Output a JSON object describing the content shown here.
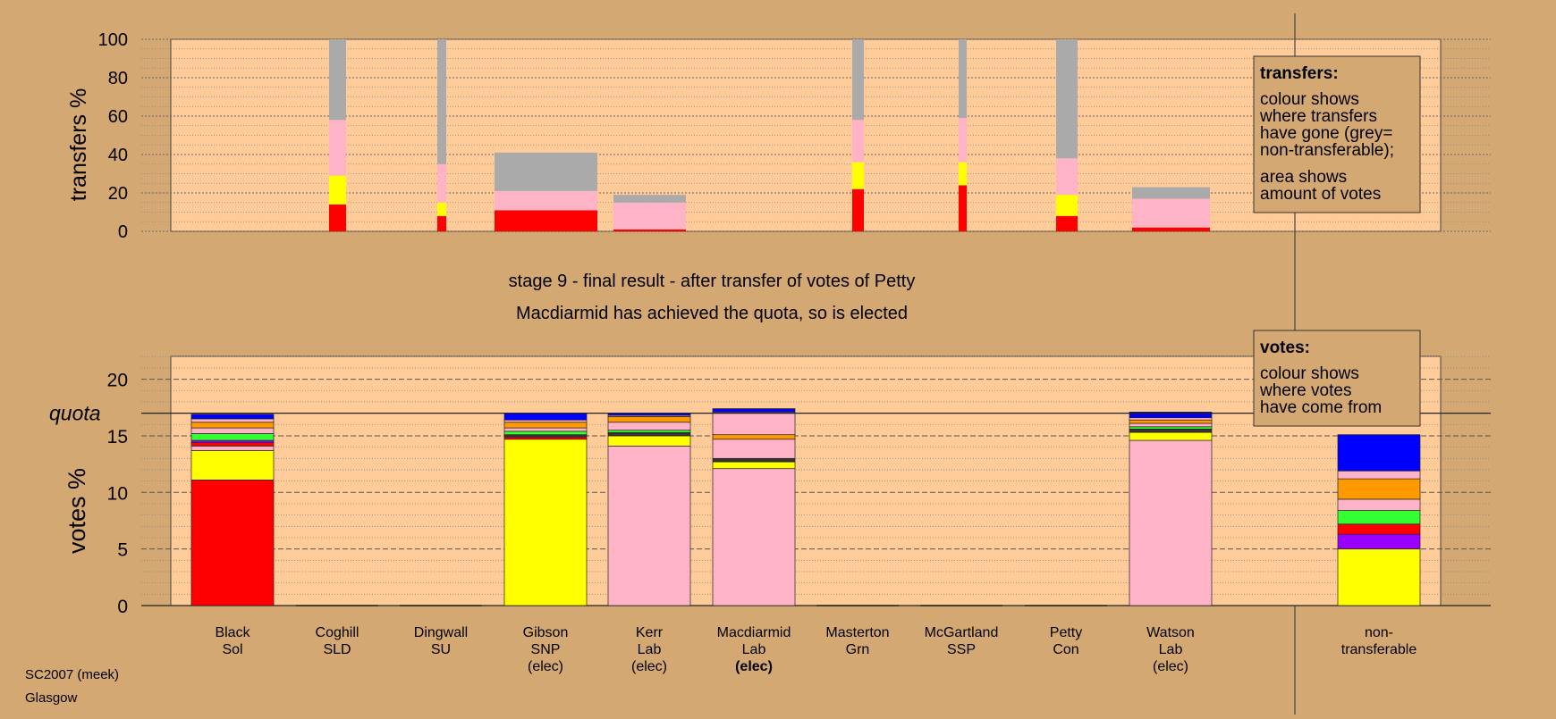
{
  "colors": {
    "background": "#d4a872",
    "panel": "#ffcc99",
    "sol": "#ff0000",
    "snp": "#ffff00",
    "lab": "#ffb3c6",
    "grey": "#aaaaaa",
    "green": "#33ff33",
    "orange": "#ff9900",
    "blue": "#0000ff",
    "purple": "#9900ff",
    "dark": "#333333"
  },
  "top_chart": {
    "ylabel": "transfers %",
    "yticks": [
      "0",
      "20",
      "40",
      "60",
      "80",
      "100"
    ]
  },
  "stage_title": "stage 9 - final result - after transfer of votes of Petty",
  "stage_subtitle": "Macdiarmid has achieved the quota, so is elected",
  "bottom_chart": {
    "ylabel": "votes %",
    "quota_label": "quota",
    "yticks": [
      "0",
      "5",
      "10",
      "15",
      "20"
    ]
  },
  "legend_transfers": {
    "title": "transfers:",
    "lines": [
      "colour shows",
      "where transfers",
      "have gone (grey=",
      "non-transferable);"
    ],
    "lines2": [
      "area shows",
      "amount of votes"
    ]
  },
  "legend_votes": {
    "title": "votes:",
    "lines": [
      "colour shows",
      "where votes",
      "have come from"
    ]
  },
  "candidates": [
    {
      "name": "Black",
      "party": "Sol",
      "status": ""
    },
    {
      "name": "Coghill",
      "party": "SLD",
      "status": ""
    },
    {
      "name": "Dingwall",
      "party": "SU",
      "status": ""
    },
    {
      "name": "Gibson",
      "party": "SNP",
      "status": "(elec)"
    },
    {
      "name": "Kerr",
      "party": "Lab",
      "status": "(elec)"
    },
    {
      "name": "Macdiarmid",
      "party": "Lab",
      "status": "(elec)"
    },
    {
      "name": "Masterton",
      "party": "Grn",
      "status": ""
    },
    {
      "name": "McGartland",
      "party": "SSP",
      "status": ""
    },
    {
      "name": "Petty",
      "party": "Con",
      "status": ""
    },
    {
      "name": "Watson",
      "party": "Lab",
      "status": "(elec)"
    },
    {
      "name": "non-",
      "party": "transferable",
      "status": ""
    }
  ],
  "footer": {
    "line1": "SC2007 (meek)",
    "line2": "Glasgow"
  },
  "chart_data": [
    {
      "type": "bar",
      "stacked": true,
      "ylabel": "transfers %",
      "ylim": [
        0,
        100
      ],
      "grid": true,
      "note": "bar width proportional to amount of votes transferred",
      "bars": [
        {
          "label": "Coghill",
          "segments": [
            {
              "color": "sol",
              "value": 14
            },
            {
              "color": "snp",
              "value": 15
            },
            {
              "color": "lab",
              "value": 29
            },
            {
              "color": "grey",
              "value": 42
            }
          ]
        },
        {
          "label": "Dingwall",
          "segments": [
            {
              "color": "sol",
              "value": 8
            },
            {
              "color": "snp",
              "value": 7
            },
            {
              "color": "lab",
              "value": 20
            },
            {
              "color": "grey",
              "value": 65
            }
          ]
        },
        {
          "label": "Gibson",
          "segments": [
            {
              "color": "sol",
              "value": 11
            },
            {
              "color": "lab",
              "value": 10
            },
            {
              "color": "grey",
              "value": 20
            }
          ]
        },
        {
          "label": "Kerr",
          "segments": [
            {
              "color": "sol",
              "value": 1
            },
            {
              "color": "lab",
              "value": 14
            },
            {
              "color": "grey",
              "value": 4
            }
          ]
        },
        {
          "label": "Masterton",
          "segments": [
            {
              "color": "sol",
              "value": 22
            },
            {
              "color": "snp",
              "value": 14
            },
            {
              "color": "lab",
              "value": 22
            },
            {
              "color": "grey",
              "value": 42
            }
          ]
        },
        {
          "label": "McGartland",
          "segments": [
            {
              "color": "sol",
              "value": 24
            },
            {
              "color": "snp",
              "value": 12
            },
            {
              "color": "lab",
              "value": 23
            },
            {
              "color": "grey",
              "value": 41
            }
          ]
        },
        {
          "label": "Petty",
          "segments": [
            {
              "color": "sol",
              "value": 8
            },
            {
              "color": "snp",
              "value": 11
            },
            {
              "color": "lab",
              "value": 19
            },
            {
              "color": "grey",
              "value": 62
            }
          ]
        },
        {
          "label": "Watson",
          "segments": [
            {
              "color": "sol",
              "value": 2
            },
            {
              "color": "lab",
              "value": 15
            },
            {
              "color": "grey",
              "value": 6
            }
          ]
        }
      ]
    },
    {
      "type": "bar",
      "stacked": true,
      "ylabel": "votes %",
      "ylim": [
        0,
        22
      ],
      "quota": 17,
      "grid": true,
      "categories": [
        "Black Sol",
        "Coghill SLD",
        "Dingwall SU",
        "Gibson SNP (elec)",
        "Kerr Lab (elec)",
        "Macdiarmid Lab (elec)",
        "Masterton Grn",
        "McGartland SSP",
        "Petty Con",
        "Watson Lab (elec)",
        "non-transferable"
      ],
      "bars": [
        {
          "label": "Black",
          "segments": [
            {
              "color": "sol",
              "value": 11.1
            },
            {
              "color": "snp",
              "value": 2.6
            },
            {
              "color": "lab",
              "value": 0.4
            },
            {
              "color": "sol",
              "value": 0.3
            },
            {
              "color": "purple",
              "value": 0.2
            },
            {
              "color": "green",
              "value": 0.6
            },
            {
              "color": "lab",
              "value": 0.5
            },
            {
              "color": "orange",
              "value": 0.5
            },
            {
              "color": "lab",
              "value": 0.3
            },
            {
              "color": "blue",
              "value": 0.4
            }
          ]
        },
        {
          "label": "Coghill",
          "segments": []
        },
        {
          "label": "Dingwall",
          "segments": []
        },
        {
          "label": "Gibson",
          "segments": [
            {
              "color": "snp",
              "value": 14.7
            },
            {
              "color": "sol",
              "value": 0.2
            },
            {
              "color": "dark",
              "value": 0.2
            },
            {
              "color": "green",
              "value": 0.3
            },
            {
              "color": "lab",
              "value": 0.3
            },
            {
              "color": "orange",
              "value": 0.5
            },
            {
              "color": "lab",
              "value": 0.2
            },
            {
              "color": "blue",
              "value": 0.6
            }
          ]
        },
        {
          "label": "Kerr",
          "segments": [
            {
              "color": "lab",
              "value": 14.1
            },
            {
              "color": "snp",
              "value": 0.9
            },
            {
              "color": "dark",
              "value": 0.3
            },
            {
              "color": "green",
              "value": 0.2
            },
            {
              "color": "lab",
              "value": 0.7
            },
            {
              "color": "orange",
              "value": 0.5
            },
            {
              "color": "lab",
              "value": 0.1
            },
            {
              "color": "blue",
              "value": 0.2
            }
          ]
        },
        {
          "label": "Macdiarmid",
          "segments": [
            {
              "color": "lab",
              "value": 12.1
            },
            {
              "color": "snp",
              "value": 0.6
            },
            {
              "color": "dark",
              "value": 0.3
            },
            {
              "color": "lab",
              "value": 1.7
            },
            {
              "color": "orange",
              "value": 0.4
            },
            {
              "color": "lab",
              "value": 2.0
            },
            {
              "color": "blue",
              "value": 0.3
            }
          ]
        },
        {
          "label": "Masterton",
          "segments": []
        },
        {
          "label": "McGartland",
          "segments": []
        },
        {
          "label": "Petty",
          "segments": []
        },
        {
          "label": "Watson",
          "segments": [
            {
              "color": "lab",
              "value": 14.6
            },
            {
              "color": "snp",
              "value": 0.7
            },
            {
              "color": "dark",
              "value": 0.3
            },
            {
              "color": "green",
              "value": 0.2
            },
            {
              "color": "lab",
              "value": 0.3
            },
            {
              "color": "orange",
              "value": 0.3
            },
            {
              "color": "lab",
              "value": 0.2
            },
            {
              "color": "blue",
              "value": 0.5
            }
          ]
        },
        {
          "label": "non-transferable",
          "segments": [
            {
              "color": "snp",
              "value": 5.0
            },
            {
              "color": "purple",
              "value": 1.3
            },
            {
              "color": "sol",
              "value": 0.9
            },
            {
              "color": "green",
              "value": 1.2
            },
            {
              "color": "lab",
              "value": 1.0
            },
            {
              "color": "orange",
              "value": 1.8
            },
            {
              "color": "lab",
              "value": 0.7
            },
            {
              "color": "blue",
              "value": 3.2
            }
          ]
        }
      ]
    }
  ]
}
